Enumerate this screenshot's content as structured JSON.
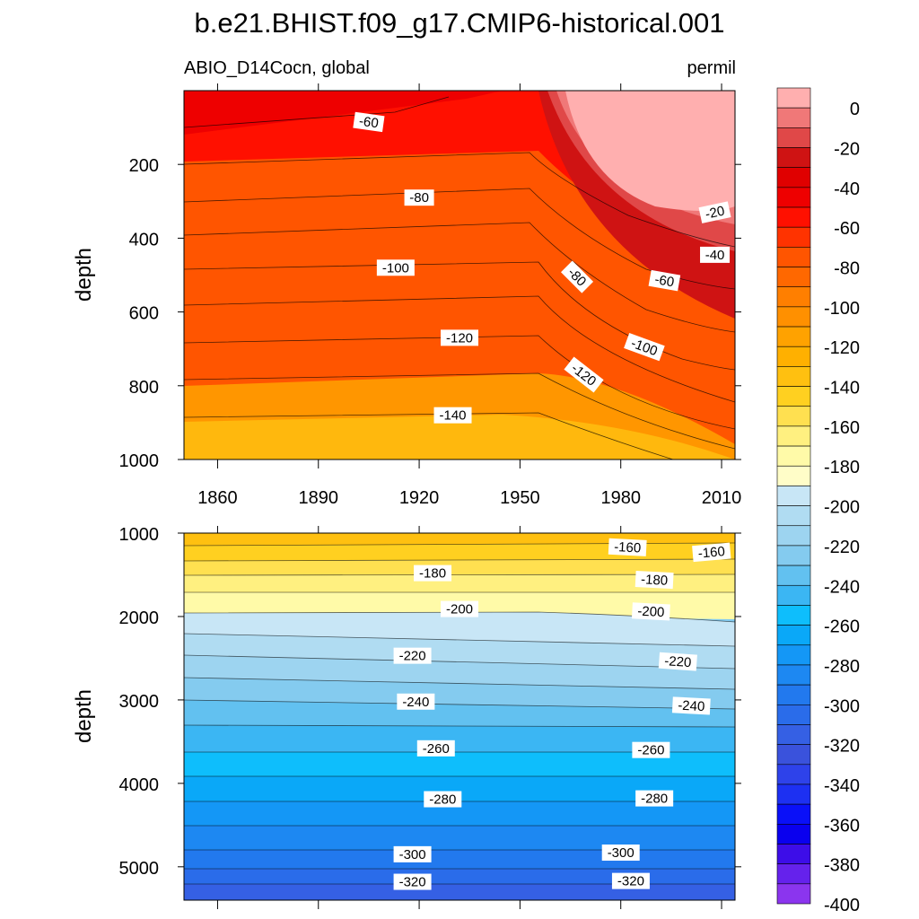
{
  "chart_data": {
    "type": "contour",
    "title": "b.e21.BHIST.f09_g17.CMIP6-historical.001",
    "left_subtitle": "ABIO_D14Cocn, global",
    "right_subtitle": "permil",
    "ylabel": "depth",
    "x_ticks": [
      1860,
      1890,
      1920,
      1950,
      1980,
      2010
    ],
    "xlim": [
      1850,
      2014
    ],
    "panels": [
      {
        "name": "upper",
        "ylim": [
          0,
          1000
        ],
        "y_ticks": [
          200,
          400,
          600,
          800,
          1000
        ],
        "contour_labels": [
          {
            "text": "-60",
            "year": 1905,
            "depth": 85,
            "angle": 8
          },
          {
            "text": "-80",
            "year": 1920,
            "depth": 290,
            "angle": 0
          },
          {
            "text": "-100",
            "year": 1913,
            "depth": 480,
            "angle": 0
          },
          {
            "text": "-120",
            "year": 1932,
            "depth": 670,
            "angle": 0
          },
          {
            "text": "-140",
            "year": 1930,
            "depth": 880,
            "angle": 0
          },
          {
            "text": "-80",
            "year": 1967,
            "depth": 505,
            "angle": 45
          },
          {
            "text": "-120",
            "year": 1969,
            "depth": 770,
            "angle": 38
          },
          {
            "text": "-100",
            "year": 1987,
            "depth": 695,
            "angle": 20
          },
          {
            "text": "-60",
            "year": 1993,
            "depth": 515,
            "angle": 10
          },
          {
            "text": "-40",
            "year": 2008,
            "depth": 445,
            "angle": 0
          },
          {
            "text": "-20",
            "year": 2008,
            "depth": 330,
            "angle": -12
          }
        ]
      },
      {
        "name": "lower",
        "ylim": [
          1000,
          5400
        ],
        "y_ticks": [
          1000,
          2000,
          3000,
          4000,
          5000
        ],
        "contour_labels": [
          {
            "text": "-160",
            "year": 1982,
            "depth": 1170,
            "angle": 3
          },
          {
            "text": "-160",
            "year": 2007,
            "depth": 1230,
            "angle": -5
          },
          {
            "text": "-180",
            "year": 1924,
            "depth": 1480,
            "angle": 0
          },
          {
            "text": "-180",
            "year": 1990,
            "depth": 1560,
            "angle": 3
          },
          {
            "text": "-200",
            "year": 1932,
            "depth": 1910,
            "angle": 0
          },
          {
            "text": "-200",
            "year": 1989,
            "depth": 1940,
            "angle": 3
          },
          {
            "text": "-220",
            "year": 1918,
            "depth": 2470,
            "angle": 0
          },
          {
            "text": "-220",
            "year": 1997,
            "depth": 2540,
            "angle": 4
          },
          {
            "text": "-240",
            "year": 1919,
            "depth": 3020,
            "angle": 0
          },
          {
            "text": "-240",
            "year": 2001,
            "depth": 3070,
            "angle": 3
          },
          {
            "text": "-260",
            "year": 1925,
            "depth": 3580,
            "angle": 0
          },
          {
            "text": "-260",
            "year": 1989,
            "depth": 3600,
            "angle": 0
          },
          {
            "text": "-280",
            "year": 1927,
            "depth": 4190,
            "angle": 0
          },
          {
            "text": "-280",
            "year": 1990,
            "depth": 4180,
            "angle": 0
          },
          {
            "text": "-300",
            "year": 1918,
            "depth": 4850,
            "angle": 0
          },
          {
            "text": "-300",
            "year": 1980,
            "depth": 4830,
            "angle": 0
          },
          {
            "text": "-320",
            "year": 1918,
            "depth": 5180,
            "angle": 0
          },
          {
            "text": "-320",
            "year": 1983,
            "depth": 5170,
            "angle": 0
          }
        ]
      }
    ],
    "colorbar": {
      "labels": [
        "0",
        "-20",
        "-40",
        "-60",
        "-80",
        "-100",
        "-120",
        "-140",
        "-160",
        "-180",
        "-200",
        "-220",
        "-240",
        "-260",
        "-280",
        "-300",
        "-320",
        "-340",
        "-360",
        "-380",
        "-400"
      ],
      "colors": [
        "#ffafaf",
        "#f07878",
        "#e04848",
        "#cf1313",
        "#e00000",
        "#ee0000",
        "#ff1000",
        "#ff3300",
        "#ff5500",
        "#ff6800",
        "#ff7f00",
        "#ff9000",
        "#ffa200",
        "#ffb000",
        "#ffc010",
        "#ffd020",
        "#ffe050",
        "#fff080",
        "#fffaa8",
        "#fffdc8",
        "#c8e6f6",
        "#b0dcf2",
        "#9dd4f0",
        "#84cbef",
        "#62c1f0",
        "#3bb6f3",
        "#0ebefc",
        "#0aa8f8",
        "#1497f6",
        "#1d88f2",
        "#2279ee",
        "#2a6cea",
        "#3560e4",
        "#3a52dc",
        "#2e42ea",
        "#1d30f2",
        "#0a10f8",
        "#0a00ee",
        "#3d0de8",
        "#6522ec",
        "#8b35ee"
      ]
    }
  }
}
